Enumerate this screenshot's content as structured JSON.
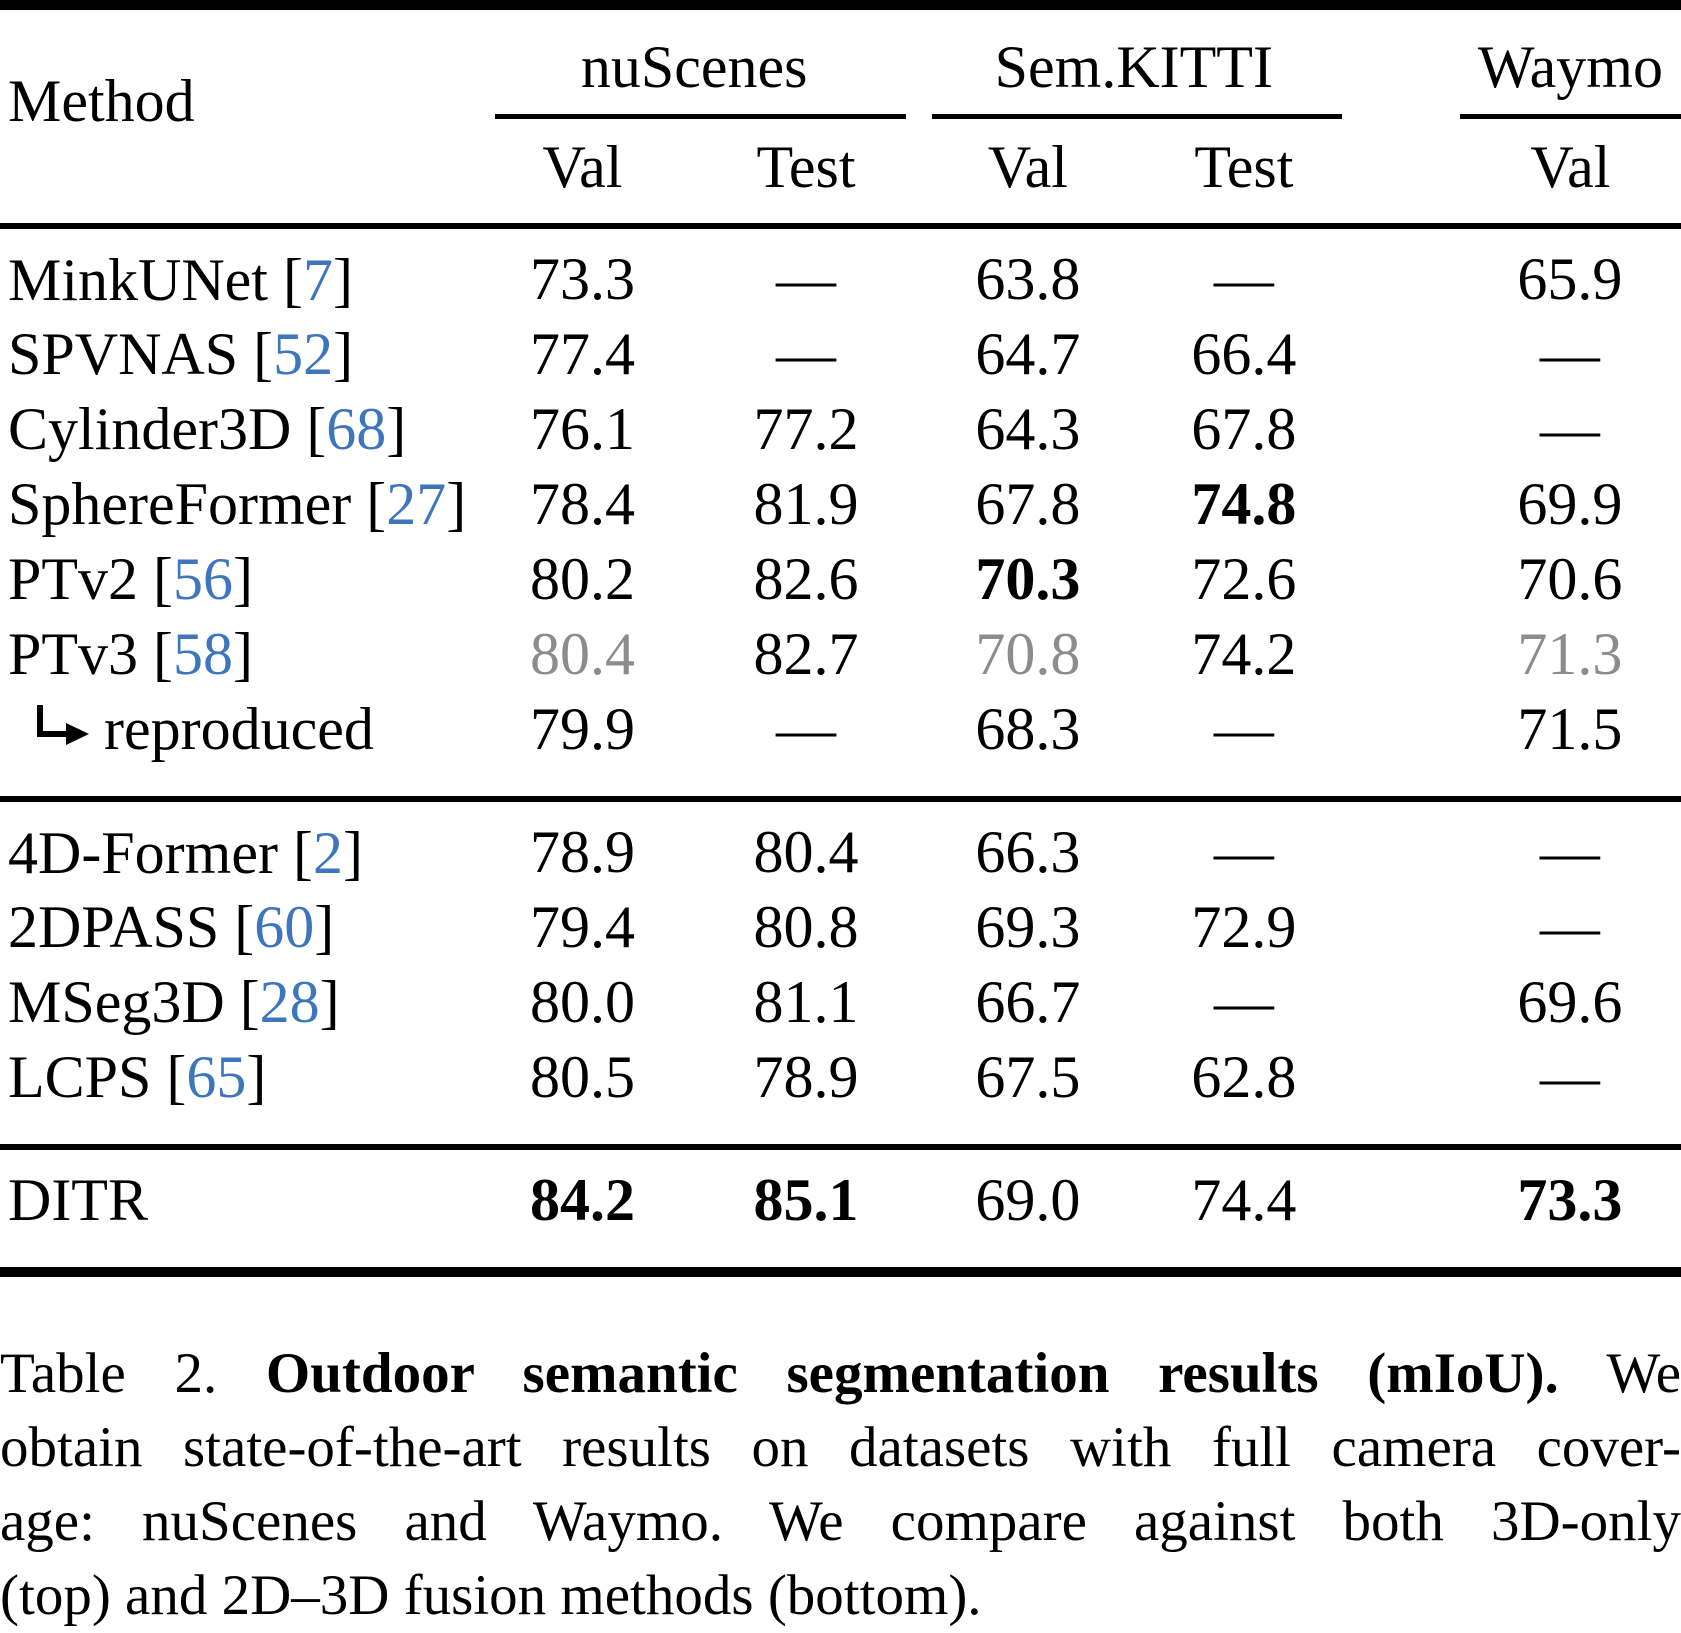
{
  "colors": {
    "citation_blue": "#3d76bd",
    "deemphasized_gray": "#8c8c8c",
    "rule_black": "#000000",
    "background": "#ffffff"
  },
  "table": {
    "citation_brackets": {
      "open": "[",
      "close": "]"
    },
    "header": {
      "method_label": "Method",
      "groups": [
        {
          "label": "nuScenes",
          "subcols": [
            "Val",
            "Test"
          ]
        },
        {
          "label": "Sem.KITTI",
          "subcols": [
            "Val",
            "Test"
          ]
        },
        {
          "label": "Waymo",
          "subcols": [
            "Val"
          ]
        }
      ]
    },
    "sections": [
      {
        "name": "3d-only-methods",
        "rows": [
          {
            "method": "MinkUNet",
            "cite": "7",
            "values": [
              {
                "v": "73.3"
              },
              {
                "v": "—"
              },
              {
                "v": "63.8"
              },
              {
                "v": "—"
              },
              {
                "v": "65.9"
              }
            ]
          },
          {
            "method": "SPVNAS",
            "cite": "52",
            "values": [
              {
                "v": "77.4"
              },
              {
                "v": "—"
              },
              {
                "v": "64.7"
              },
              {
                "v": "66.4"
              },
              {
                "v": "—"
              }
            ]
          },
          {
            "method": "Cylinder3D",
            "cite": "68",
            "values": [
              {
                "v": "76.1"
              },
              {
                "v": "77.2"
              },
              {
                "v": "64.3"
              },
              {
                "v": "67.8"
              },
              {
                "v": "—"
              }
            ]
          },
          {
            "method": "SphereFormer",
            "cite": "27",
            "values": [
              {
                "v": "78.4"
              },
              {
                "v": "81.9"
              },
              {
                "v": "67.8"
              },
              {
                "v": "74.8",
                "style": "bold"
              },
              {
                "v": "69.9"
              }
            ]
          },
          {
            "method": "PTv2",
            "cite": "56",
            "values": [
              {
                "v": "80.2"
              },
              {
                "v": "82.6"
              },
              {
                "v": "70.3",
                "style": "bold"
              },
              {
                "v": "72.6"
              },
              {
                "v": "70.6"
              }
            ]
          },
          {
            "method": "PTv3",
            "cite": "58",
            "values": [
              {
                "v": "80.4",
                "style": "gray"
              },
              {
                "v": "82.7"
              },
              {
                "v": "70.8",
                "style": "gray"
              },
              {
                "v": "74.2"
              },
              {
                "v": "71.3",
                "style": "gray"
              }
            ]
          },
          {
            "method": "reproduced",
            "indent": true,
            "values": [
              {
                "v": "79.9"
              },
              {
                "v": "—"
              },
              {
                "v": "68.3"
              },
              {
                "v": "—"
              },
              {
                "v": "71.5"
              }
            ]
          }
        ]
      },
      {
        "name": "2d-3d-fusion-methods",
        "rows": [
          {
            "method": "4D-Former",
            "cite": "2",
            "values": [
              {
                "v": "78.9"
              },
              {
                "v": "80.4"
              },
              {
                "v": "66.3"
              },
              {
                "v": "—"
              },
              {
                "v": "—"
              }
            ]
          },
          {
            "method": "2DPASS",
            "cite": "60",
            "values": [
              {
                "v": "79.4"
              },
              {
                "v": "80.8"
              },
              {
                "v": "69.3"
              },
              {
                "v": "72.9"
              },
              {
                "v": "—"
              }
            ]
          },
          {
            "method": "MSeg3D",
            "cite": "28",
            "values": [
              {
                "v": "80.0"
              },
              {
                "v": "81.1"
              },
              {
                "v": "66.7"
              },
              {
                "v": "—"
              },
              {
                "v": "69.6"
              }
            ]
          },
          {
            "method": "LCPS",
            "cite": "65",
            "values": [
              {
                "v": "80.5"
              },
              {
                "v": "78.9"
              },
              {
                "v": "67.5"
              },
              {
                "v": "62.8"
              },
              {
                "v": "—"
              }
            ]
          }
        ]
      },
      {
        "name": "ours",
        "rows": [
          {
            "method": "DITR",
            "values": [
              {
                "v": "84.2",
                "style": "bold"
              },
              {
                "v": "85.1",
                "style": "bold"
              },
              {
                "v": "69.0"
              },
              {
                "v": "74.4"
              },
              {
                "v": "73.3",
                "style": "bold"
              }
            ]
          }
        ]
      }
    ]
  },
  "caption": {
    "lines": [
      {
        "justify": true,
        "segments": [
          {
            "text": "Table 2.",
            "bold": false
          },
          {
            "text": "Outdoor semantic segmentation results (mIoU).",
            "bold": true
          },
          {
            "text": "We",
            "bold": false
          }
        ]
      },
      {
        "justify": true,
        "segments": [
          {
            "text": "obtain state-of-the-art results on datasets with full camera cover-",
            "bold": false
          }
        ]
      },
      {
        "justify": true,
        "segments": [
          {
            "text": "age: nuScenes and Waymo. We compare against both 3D-only",
            "bold": false
          }
        ]
      },
      {
        "justify": false,
        "segments": [
          {
            "text": "(top) and 2D–3D fusion methods (bottom).",
            "bold": false
          }
        ]
      }
    ]
  }
}
